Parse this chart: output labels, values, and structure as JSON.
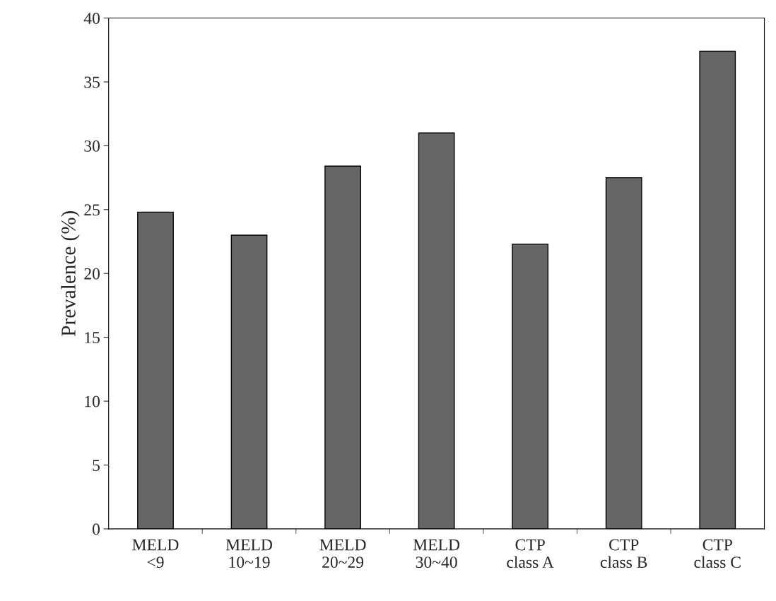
{
  "chart_data": {
    "type": "bar",
    "ylabel": "Prevalence (%)",
    "categories": [
      "MELD\n<9",
      "MELD\n10~19",
      "MELD\n20~29",
      "MELD\n30~40",
      "CTP\nclass A",
      "CTP\nclass B",
      "CTP\nclass C"
    ],
    "values": [
      24.8,
      23.0,
      28.4,
      31.0,
      22.3,
      27.5,
      37.4
    ],
    "color": "#666666",
    "ylim": [
      0,
      40
    ],
    "yticks": [
      0,
      5,
      10,
      15,
      20,
      25,
      30,
      35,
      40
    ],
    "grid": false
  }
}
